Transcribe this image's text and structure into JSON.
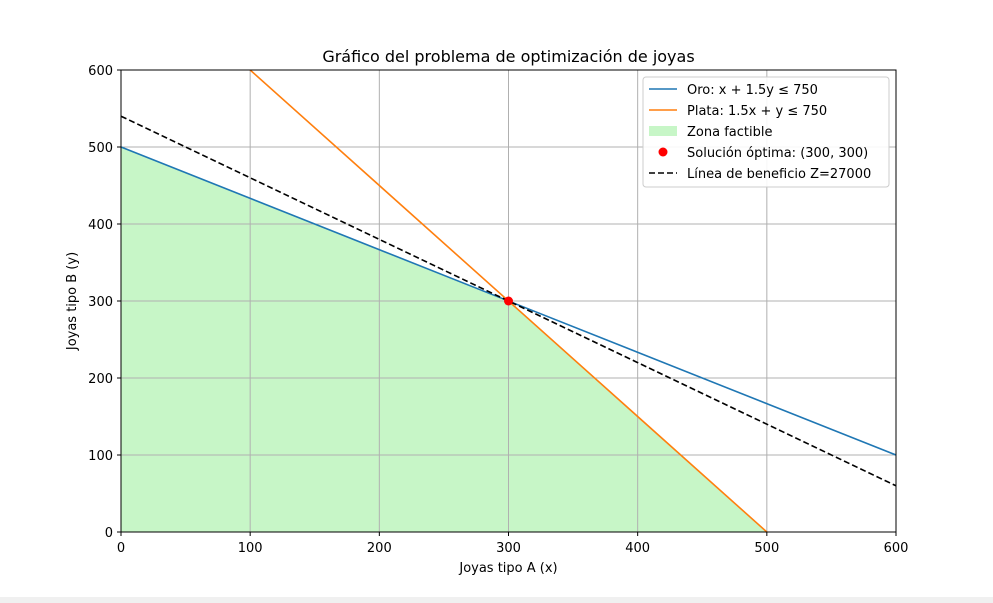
{
  "chart_data": {
    "type": "line",
    "title": "Gráfico del problema de optimización de joyas",
    "xlabel": "Joyas tipo A (x)",
    "ylabel": "Joyas tipo B (y)",
    "xlim": [
      0,
      600
    ],
    "ylim": [
      0,
      600
    ],
    "xticks": [
      0,
      100,
      200,
      300,
      400,
      500,
      600
    ],
    "yticks": [
      0,
      100,
      200,
      300,
      400,
      500,
      600
    ],
    "xtick_labels": [
      "0",
      "100",
      "200",
      "300",
      "400",
      "500",
      "600"
    ],
    "ytick_labels": [
      "0",
      "100",
      "200",
      "300",
      "400",
      "500",
      "600"
    ],
    "grid": true,
    "legend_position": "top-right",
    "series": [
      {
        "name": "Oro: x + 1.5y ≤ 750",
        "color": "#1f77b4",
        "style": "solid",
        "x": [
          0,
          600
        ],
        "y": [
          500,
          100
        ]
      },
      {
        "name": "Plata: 1.5x + y ≤ 750",
        "color": "#ff7f0e",
        "style": "solid",
        "x": [
          100,
          500
        ],
        "y": [
          600,
          0
        ]
      },
      {
        "name": "Línea de beneficio Z=27000",
        "color": "#000000",
        "style": "dashed",
        "x": [
          0,
          600
        ],
        "y": [
          540,
          60
        ]
      }
    ],
    "region": {
      "name": "Zona factible",
      "color": "#90ee90",
      "opacity": 0.5,
      "x": [
        0,
        300,
        500,
        0
      ],
      "y": [
        500,
        300,
        0,
        0
      ]
    },
    "point": {
      "name": "Solución óptima: (300, 300)",
      "color": "#ff0000",
      "x": 300,
      "y": 300
    },
    "legend_order": [
      "series.0",
      "series.1",
      "region",
      "point",
      "series.2"
    ]
  }
}
